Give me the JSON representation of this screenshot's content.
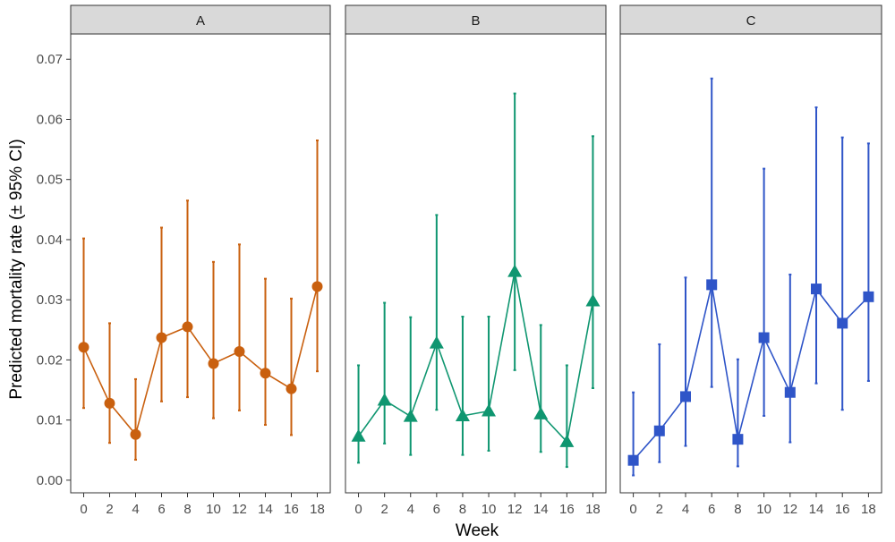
{
  "chart_data": {
    "type": "line",
    "facets": [
      "A",
      "B",
      "C"
    ],
    "xlabel": "Week",
    "ylabel": "Predicted mortality rate (± 95% CI)",
    "x": [
      0,
      2,
      4,
      6,
      8,
      10,
      12,
      14,
      16,
      18
    ],
    "xlim": [
      -1,
      19
    ],
    "ylim": [
      -0.0021,
      0.0742
    ],
    "yticks": [
      0.0,
      0.01,
      0.02,
      0.03,
      0.04,
      0.05,
      0.06,
      0.07
    ],
    "ytick_labels": [
      "0.00",
      "0.01",
      "0.02",
      "0.03",
      "0.04",
      "0.05",
      "0.06",
      "0.07"
    ],
    "grid": false,
    "error_bars": "95% CI",
    "series": [
      {
        "facet": "A",
        "color": "#c9600f",
        "marker": "circle",
        "values": [
          0.0221,
          0.0128,
          0.0076,
          0.0237,
          0.0255,
          0.0194,
          0.0214,
          0.0178,
          0.0152,
          0.0322
        ],
        "lower": [
          0.012,
          0.0062,
          0.0034,
          0.0131,
          0.0138,
          0.0103,
          0.0116,
          0.0092,
          0.0075,
          0.0181
        ],
        "upper": [
          0.0402,
          0.0261,
          0.0168,
          0.042,
          0.0465,
          0.0363,
          0.0392,
          0.0335,
          0.0302,
          0.0565
        ]
      },
      {
        "facet": "B",
        "color": "#0f9670",
        "marker": "triangle",
        "values": [
          0.0073,
          0.0133,
          0.0106,
          0.0228,
          0.0107,
          0.0115,
          0.0347,
          0.011,
          0.0064,
          0.0298
        ],
        "lower": [
          0.0029,
          0.0061,
          0.0042,
          0.0117,
          0.0042,
          0.0049,
          0.0183,
          0.0047,
          0.0022,
          0.0153
        ],
        "upper": [
          0.0191,
          0.0295,
          0.0271,
          0.0441,
          0.0272,
          0.0272,
          0.0643,
          0.0258,
          0.0191,
          0.0572
        ]
      },
      {
        "facet": "C",
        "color": "#2f55c8",
        "marker": "square",
        "values": [
          0.0033,
          0.0082,
          0.0139,
          0.0325,
          0.0068,
          0.0237,
          0.0146,
          0.0318,
          0.0261,
          0.0305
        ],
        "lower": [
          0.0008,
          0.003,
          0.0057,
          0.0155,
          0.0023,
          0.0107,
          0.0063,
          0.0161,
          0.0117,
          0.0165
        ],
        "upper": [
          0.0146,
          0.0226,
          0.0337,
          0.0668,
          0.0201,
          0.0518,
          0.0342,
          0.062,
          0.057,
          0.056
        ]
      }
    ]
  }
}
